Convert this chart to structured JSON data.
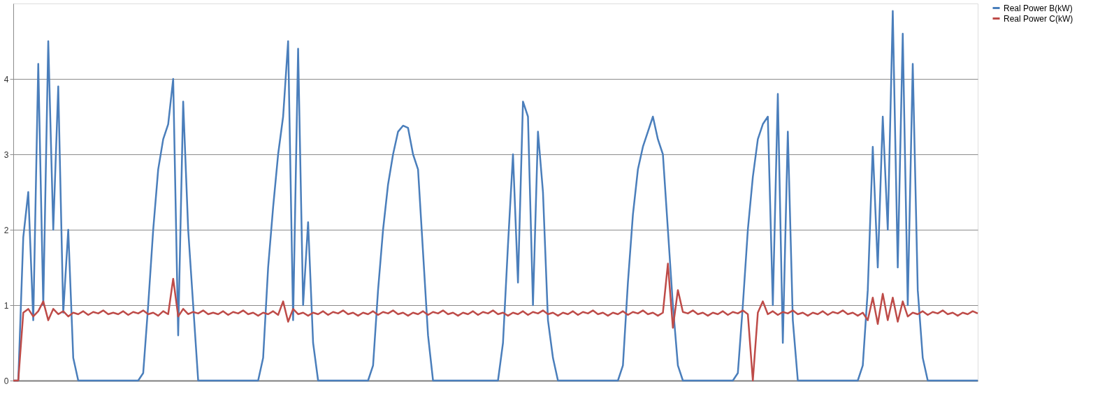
{
  "chart_data": {
    "type": "line",
    "categories": [
      null,
      null,
      null,
      null,
      null,
      null,
      null,
      null,
      null,
      null,
      null,
      null,
      null,
      null,
      null,
      null,
      null,
      null,
      null,
      null,
      null,
      null,
      null,
      null,
      null,
      null,
      null,
      null,
      null,
      null,
      null,
      null,
      null,
      null,
      null,
      null,
      null,
      null,
      null,
      null,
      null,
      null,
      null,
      null,
      null,
      null,
      null,
      null,
      null,
      null,
      null,
      null,
      null,
      null,
      null,
      null,
      null,
      null,
      null,
      null,
      null,
      null,
      null,
      null,
      null,
      null,
      null,
      null,
      null,
      null,
      null,
      null,
      null,
      null,
      null,
      null,
      null,
      null,
      null,
      null,
      null,
      null,
      null,
      null,
      null,
      null,
      null,
      null,
      null,
      null,
      null,
      null,
      null,
      null,
      null,
      null,
      null,
      null,
      null,
      null,
      null,
      null,
      null,
      null,
      null,
      null,
      null,
      null,
      null,
      null,
      null,
      null,
      null,
      null,
      null,
      null,
      null,
      null,
      null,
      null,
      null,
      null,
      null,
      null,
      null,
      null,
      null,
      null,
      null,
      null,
      null,
      null,
      null,
      null,
      null,
      null,
      null,
      null,
      null,
      null,
      null,
      null,
      null,
      null,
      null,
      null,
      null,
      null,
      null,
      null,
      null,
      null,
      null,
      null,
      null,
      null,
      null,
      null,
      null,
      null,
      null,
      null,
      null,
      null,
      null,
      null,
      null,
      null,
      null,
      null,
      null,
      null,
      null,
      null,
      null,
      null,
      null,
      null,
      null,
      null,
      null,
      null,
      null,
      null,
      null,
      null,
      null,
      null,
      null,
      null,
      null,
      null,
      null,
      null
    ],
    "series": [
      {
        "name": "Real Power B(kW)",
        "color": "#4a7ebb",
        "values": [
          0,
          0,
          1.9,
          2.5,
          0.8,
          4.2,
          1.0,
          4.5,
          2.0,
          3.9,
          0.9,
          2.0,
          0.3,
          0,
          0,
          0,
          0,
          0,
          0,
          0,
          0,
          0,
          0,
          0,
          0,
          0,
          0.1,
          1.0,
          2.0,
          2.8,
          3.2,
          3.4,
          4.0,
          0.6,
          3.7,
          2.0,
          1.0,
          0,
          0,
          0,
          0,
          0,
          0,
          0,
          0,
          0,
          0,
          0,
          0,
          0,
          0.3,
          1.5,
          2.3,
          3.0,
          3.5,
          4.5,
          0.8,
          4.4,
          1.0,
          2.1,
          0.5,
          0,
          0,
          0,
          0,
          0,
          0,
          0,
          0,
          0,
          0,
          0,
          0.2,
          1.2,
          2.0,
          2.6,
          3.0,
          3.3,
          3.38,
          3.35,
          3.0,
          2.8,
          1.7,
          0.6,
          0,
          0,
          0,
          0,
          0,
          0,
          0,
          0,
          0,
          0,
          0,
          0,
          0,
          0,
          0.5,
          1.8,
          3.0,
          1.3,
          3.7,
          3.5,
          1.0,
          3.3,
          2.5,
          0.8,
          0.3,
          0,
          0,
          0,
          0,
          0,
          0,
          0,
          0,
          0,
          0,
          0,
          0,
          0,
          0.2,
          1.3,
          2.2,
          2.8,
          3.1,
          3.3,
          3.5,
          3.2,
          3.0,
          2.0,
          1.0,
          0.2,
          0,
          0,
          0,
          0,
          0,
          0,
          0,
          0,
          0,
          0,
          0,
          0.1,
          1.0,
          2.0,
          2.7,
          3.2,
          3.4,
          3.5,
          1.0,
          3.8,
          0.5,
          3.3,
          0.8,
          0,
          0,
          0,
          0,
          0,
          0,
          0,
          0,
          0,
          0,
          0,
          0,
          0,
          0.2,
          1.2,
          3.1,
          1.5,
          3.5,
          2.0,
          4.9,
          1.5,
          4.6,
          1.0,
          4.2,
          1.2,
          0.3,
          0,
          0,
          0,
          0,
          0,
          0,
          0,
          0,
          0,
          0,
          0
        ]
      },
      {
        "name": "Real Power C(kW)",
        "color": "#be4b48",
        "values": [
          0,
          0,
          0.9,
          0.95,
          0.85,
          0.92,
          1.05,
          0.8,
          0.95,
          0.88,
          0.92,
          0.85,
          0.9,
          0.88,
          0.92,
          0.87,
          0.91,
          0.89,
          0.93,
          0.88,
          0.9,
          0.88,
          0.92,
          0.87,
          0.91,
          0.89,
          0.93,
          0.88,
          0.9,
          0.86,
          0.92,
          0.88,
          1.35,
          0.85,
          0.95,
          0.88,
          0.91,
          0.89,
          0.93,
          0.88,
          0.9,
          0.88,
          0.92,
          0.87,
          0.91,
          0.89,
          0.93,
          0.88,
          0.9,
          0.86,
          0.9,
          0.88,
          0.92,
          0.87,
          1.05,
          0.78,
          0.95,
          0.88,
          0.9,
          0.86,
          0.9,
          0.88,
          0.92,
          0.87,
          0.91,
          0.89,
          0.93,
          0.88,
          0.9,
          0.86,
          0.9,
          0.88,
          0.92,
          0.87,
          0.91,
          0.89,
          0.93,
          0.88,
          0.9,
          0.86,
          0.9,
          0.88,
          0.92,
          0.87,
          0.91,
          0.89,
          0.93,
          0.88,
          0.9,
          0.86,
          0.9,
          0.88,
          0.92,
          0.87,
          0.91,
          0.89,
          0.93,
          0.88,
          0.9,
          0.86,
          0.9,
          0.88,
          0.92,
          0.87,
          0.91,
          0.89,
          0.93,
          0.88,
          0.9,
          0.86,
          0.9,
          0.88,
          0.92,
          0.87,
          0.91,
          0.89,
          0.93,
          0.88,
          0.9,
          0.86,
          0.9,
          0.88,
          0.92,
          0.87,
          0.91,
          0.89,
          0.93,
          0.88,
          0.9,
          0.86,
          0.9,
          1.55,
          0.7,
          1.2,
          0.91,
          0.89,
          0.93,
          0.88,
          0.9,
          0.86,
          0.9,
          0.88,
          0.92,
          0.87,
          0.91,
          0.89,
          0.93,
          0.88,
          0,
          0.9,
          1.05,
          0.88,
          0.92,
          0.87,
          0.91,
          0.89,
          0.93,
          0.88,
          0.9,
          0.86,
          0.9,
          0.88,
          0.92,
          0.87,
          0.91,
          0.89,
          0.93,
          0.88,
          0.9,
          0.86,
          0.9,
          0.8,
          1.1,
          0.75,
          1.15,
          0.8,
          1.1,
          0.78,
          1.05,
          0.85,
          0.9,
          0.88,
          0.92,
          0.87,
          0.91,
          0.89,
          0.93,
          0.88,
          0.9,
          0.86,
          0.9,
          0.88,
          0.92,
          0.89
        ]
      }
    ],
    "ylim": [
      0,
      5
    ],
    "yticks": [
      0,
      1,
      2,
      3,
      4
    ],
    "grid": "y",
    "legend": "right",
    "tick_labels": "y",
    "line_style": "solid",
    "marker": "none"
  }
}
